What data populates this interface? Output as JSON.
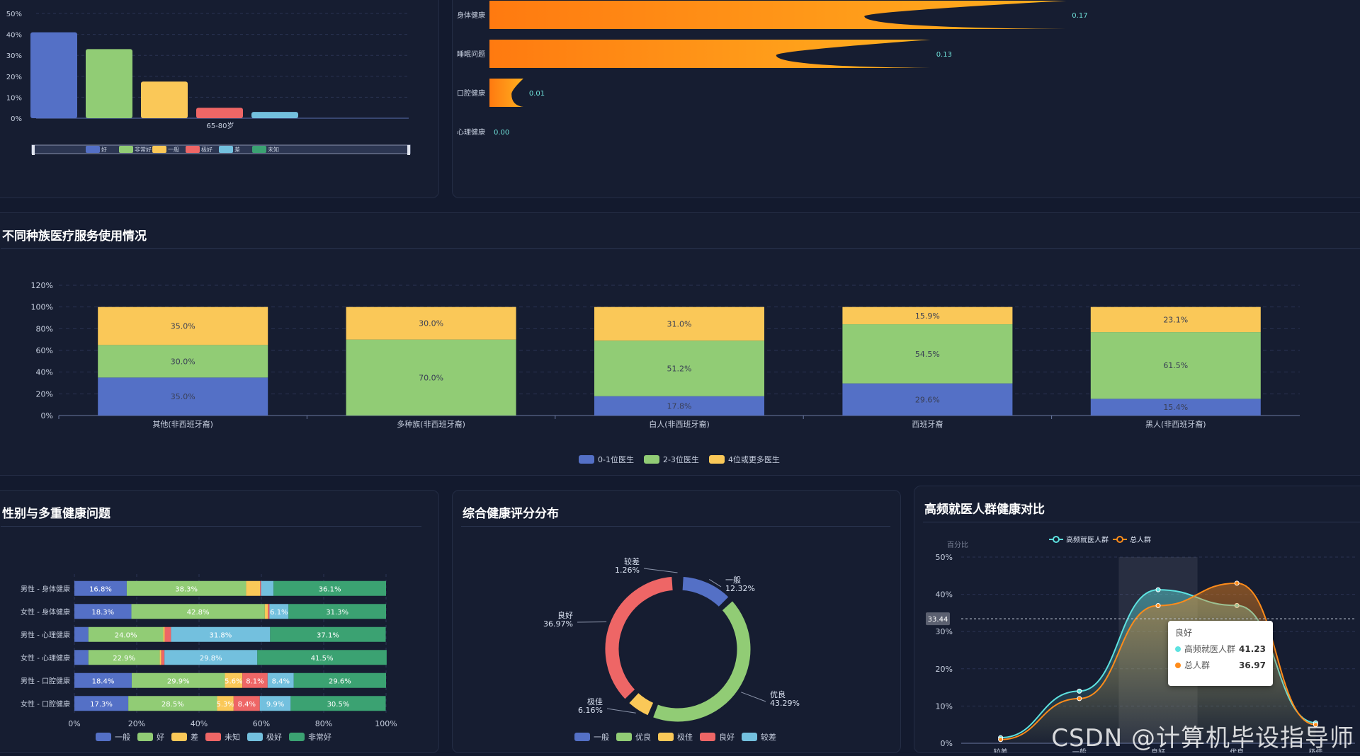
{
  "colors": {
    "blue": "#5470c6",
    "green": "#91cc75",
    "yellow": "#fac858",
    "red": "#ee6666",
    "lightblue": "#73c0de",
    "teal": "#3ba272",
    "orange": "#ff8c1a",
    "cyan": "#59e0d8",
    "tealLine": "#5de2e0"
  },
  "panel_age": {
    "chart_data": {
      "type": "bar",
      "categories": [
        "65-80岁"
      ],
      "series": [
        {
          "name": "好",
          "values": [
            41
          ]
        },
        {
          "name": "非常好",
          "values": [
            33
          ]
        },
        {
          "name": "一般",
          "values": [
            17.5
          ]
        },
        {
          "name": "极好",
          "values": [
            5
          ]
        },
        {
          "name": "差",
          "values": [
            3
          ]
        },
        {
          "name": "未知",
          "values": [
            0
          ]
        }
      ],
      "yticks": [
        "50%",
        "40%",
        "30%",
        "20%",
        "10%",
        "0%"
      ],
      "ylim": [
        0,
        50
      ]
    }
  },
  "panel_problem": {
    "chart_data": {
      "type": "bar",
      "orientation": "horizontal",
      "categories": [
        "身体健康",
        "睡眠问题",
        "口腔健康",
        "心理健康"
      ],
      "values": [
        0.17,
        0.13,
        0.01,
        0.0
      ],
      "labels": [
        "0.17",
        "0.13",
        "0.01",
        "0.00"
      ],
      "xlim": [
        0,
        0.2
      ]
    }
  },
  "panel_race": {
    "title": "不同种族医疗服务使用情况",
    "legend": [
      "0-1位医生",
      "2-3位医生",
      "4位或更多医生"
    ],
    "chart_data": {
      "type": "bar",
      "stacked": true,
      "categories": [
        "其他(非西班牙裔)",
        "多种族(非西班牙裔)",
        "白人(非西班牙裔)",
        "西班牙裔",
        "黑人(非西班牙裔)"
      ],
      "series": [
        {
          "name": "0-1位医生",
          "values": [
            35.0,
            0.0,
            17.8,
            29.6,
            15.4
          ]
        },
        {
          "name": "2-3位医生",
          "values": [
            30.0,
            70.0,
            51.2,
            54.5,
            61.5
          ]
        },
        {
          "name": "4位或更多医生",
          "values": [
            35.0,
            30.0,
            31.0,
            15.9,
            23.1
          ]
        }
      ],
      "labels": [
        [
          "35.0%",
          "30.0%",
          "35.0%"
        ],
        [
          "0.0%",
          "70.0%",
          "30.0%"
        ],
        [
          "17.8%",
          "51.2%",
          "31.0%"
        ],
        [
          "29.6%",
          "54.5%",
          "15.9%"
        ],
        [
          "15.4%",
          "61.5%",
          "23.1%"
        ]
      ],
      "yticks": [
        "120%",
        "100%",
        "80%",
        "60%",
        "40%",
        "20%",
        "0%"
      ],
      "ylim": [
        0,
        120
      ]
    }
  },
  "panel_gender": {
    "title": "性别与多重健康问题",
    "legend": [
      "一般",
      "好",
      "差",
      "未知",
      "极好",
      "非常好"
    ],
    "chart_data": {
      "type": "bar",
      "orientation": "horizontal",
      "stacked": true,
      "categories": [
        "男性 - 身体健康",
        "女性 - 身体健康",
        "男性 - 心理健康",
        "女性 - 心理健康",
        "男性 - 口腔健康",
        "女性 - 口腔健康"
      ],
      "series": [
        {
          "name": "一般",
          "values": [
            16.8,
            18.3,
            4.5,
            4.5,
            18.4,
            17.3
          ]
        },
        {
          "name": "好",
          "values": [
            38.3,
            42.8,
            24.0,
            22.9,
            29.9,
            28.5
          ]
        },
        {
          "name": "差",
          "values": [
            4.5,
            1.0,
            0.5,
            0.5,
            5.6,
            5.3
          ]
        },
        {
          "name": "未知",
          "values": [
            0.3,
            0.5,
            2.0,
            1.0,
            8.1,
            8.4
          ]
        },
        {
          "name": "极好",
          "values": [
            4.0,
            6.1,
            31.8,
            29.8,
            8.4,
            9.9
          ]
        },
        {
          "name": "非常好",
          "values": [
            36.1,
            31.3,
            37.1,
            41.5,
            29.6,
            30.5
          ]
        }
      ],
      "labels": [
        [
          "16.8%",
          "38.3%",
          "",
          "",
          "",
          "36.1%"
        ],
        [
          "18.3%",
          "42.8%",
          "",
          "",
          "6.1%",
          "31.3%"
        ],
        [
          "",
          "24.0%",
          "",
          "",
          "31.8%",
          "37.1%"
        ],
        [
          "",
          "22.9%",
          "",
          "",
          "29.8%",
          "41.5%"
        ],
        [
          "18.4%",
          "29.9%",
          "5.6%",
          "8.1%",
          "8.4%",
          "29.6%"
        ],
        [
          "17.3%",
          "28.5%",
          "5.3%",
          "8.4%",
          "9.9%",
          "30.5%"
        ]
      ],
      "xticks": [
        "0%",
        "20%",
        "40%",
        "60%",
        "80%",
        "100%"
      ],
      "xlim": [
        0,
        100
      ]
    }
  },
  "panel_score": {
    "title": "综合健康评分分布",
    "legend": [
      "一般",
      "优良",
      "极佳",
      "良好",
      "较差"
    ],
    "chart_data": {
      "type": "pie",
      "donut": true,
      "labels": [
        "一般",
        "优良",
        "极佳",
        "良好",
        "较差"
      ],
      "values": [
        12.32,
        43.29,
        6.16,
        36.97,
        1.26
      ],
      "pct_labels": [
        "12.32%",
        "43.29%",
        "6.16%",
        "36.97%",
        "1.26%"
      ]
    }
  },
  "panel_freq": {
    "title": "高频就医人群健康对比",
    "legend": [
      "高频就医人群",
      "总人群"
    ],
    "axis_name": "百分比",
    "pointer_value": "33.44",
    "tooltip": {
      "title": "良好",
      "rows": [
        {
          "name": "高频就医人群",
          "value": "41.23"
        },
        {
          "name": "总人群",
          "value": "36.97"
        }
      ]
    },
    "chart_data": {
      "type": "area",
      "categories": [
        "较差",
        "一般",
        "良好",
        "优良",
        "极佳"
      ],
      "series": [
        {
          "name": "高频就医人群",
          "values": [
            1.5,
            14,
            41.23,
            37,
            5.5
          ]
        },
        {
          "name": "总人群",
          "values": [
            1.0,
            12,
            36.97,
            43,
            5
          ]
        }
      ],
      "yticks": [
        "50%",
        "40%",
        "30%",
        "20%",
        "10%",
        "0%"
      ],
      "ylim": [
        0,
        50
      ]
    }
  },
  "watermark": "CSDN @计算机毕设指导师"
}
